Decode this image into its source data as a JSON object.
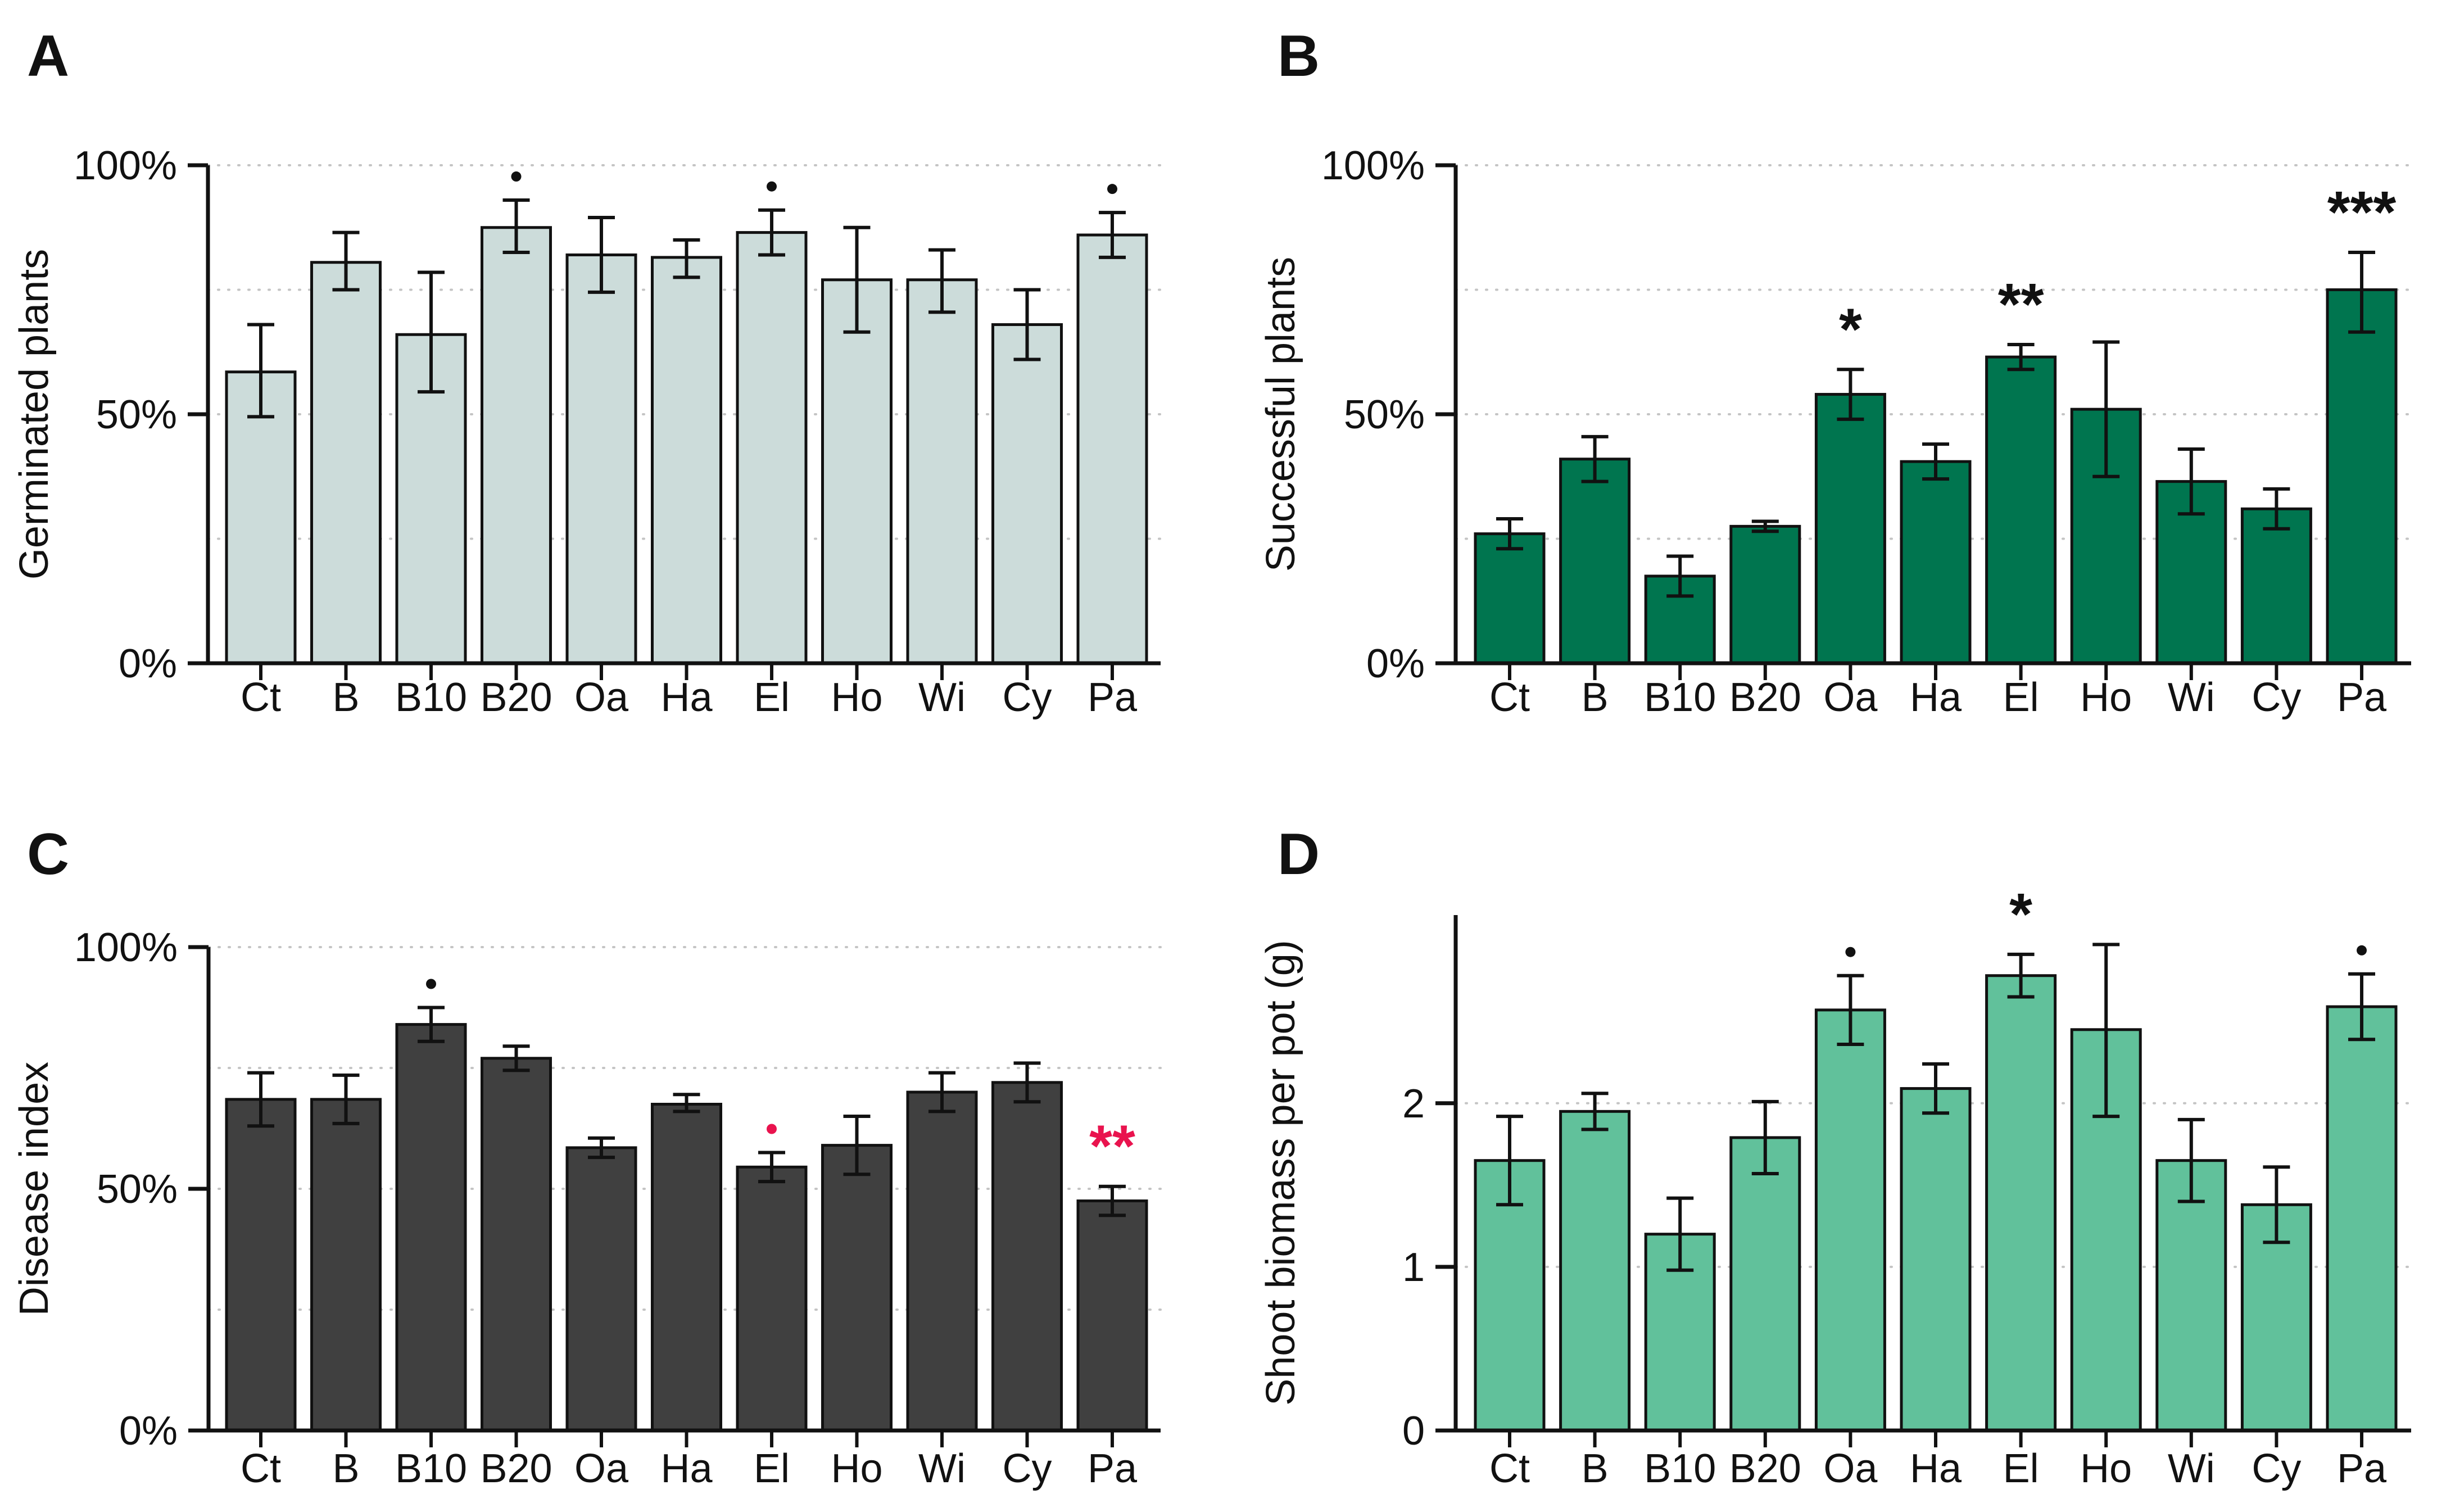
{
  "figure": {
    "background": "#ffffff",
    "axis_color": "#111111",
    "grid_color": "#c4c4c4",
    "significance_red": "#e9134e",
    "significance_black": "#111111"
  },
  "chart_data": [
    {
      "type": "bar",
      "panel_letter": "A",
      "ylabel": "Germinated plants",
      "categories": [
        "Ct",
        "B",
        "B10",
        "B20",
        "Oa",
        "Ha",
        "El",
        "Ho",
        "Wi",
        "Cy",
        "Pa"
      ],
      "values": [
        58.5,
        80.5,
        66,
        87.5,
        82,
        81.5,
        86.5,
        77,
        77,
        68,
        86
      ],
      "err_lo": [
        49.5,
        75,
        54.5,
        82.5,
        74.5,
        77.5,
        82,
        66.5,
        70.5,
        61,
        81.5
      ],
      "err_hi": [
        68,
        86.5,
        78.5,
        93,
        89.5,
        85,
        91,
        87.5,
        83,
        75,
        90.5
      ],
      "ylim": [
        0,
        100
      ],
      "yticks": [
        {
          "v": 0,
          "label": "0%"
        },
        {
          "v": 50,
          "label": "50%"
        },
        {
          "v": 100,
          "label": "100%"
        }
      ],
      "gridlines": [
        25,
        50,
        75,
        100
      ],
      "grid_style": "dotted",
      "bar_fill": "#ccdcda",
      "bar_stroke": "#111111",
      "markers": [
        {
          "category": "B20",
          "symbol": "dot",
          "color": "#111111"
        },
        {
          "category": "El",
          "symbol": "dot",
          "color": "#111111"
        },
        {
          "category": "Pa",
          "symbol": "dot",
          "color": "#111111"
        }
      ]
    },
    {
      "type": "bar",
      "panel_letter": "B",
      "ylabel": "Successful plants",
      "categories": [
        "Ct",
        "B",
        "B10",
        "B20",
        "Oa",
        "Ha",
        "El",
        "Ho",
        "Wi",
        "Cy",
        "Pa"
      ],
      "values": [
        26,
        41,
        17.5,
        27.5,
        54,
        40.5,
        61.5,
        51,
        36.5,
        31,
        75
      ],
      "err_lo": [
        23,
        36.5,
        13.5,
        26.5,
        49,
        37,
        59,
        37.5,
        30,
        27,
        66.5
      ],
      "err_hi": [
        29,
        45.5,
        21.5,
        28.5,
        59,
        44,
        64,
        64.5,
        43,
        35,
        82.5
      ],
      "ylim": [
        0,
        100
      ],
      "yticks": [
        {
          "v": 0,
          "label": "0%"
        },
        {
          "v": 50,
          "label": "50%"
        },
        {
          "v": 100,
          "label": "100%"
        }
      ],
      "gridlines": [
        25,
        50,
        75,
        100
      ],
      "grid_style": "dotted",
      "bar_fill": "#00754f",
      "bar_stroke": "#111111",
      "markers": [
        {
          "category": "Oa",
          "symbol": "*",
          "color": "#111111"
        },
        {
          "category": "El",
          "symbol": "**",
          "color": "#111111"
        },
        {
          "category": "Pa",
          "symbol": "***",
          "color": "#111111"
        }
      ]
    },
    {
      "type": "bar",
      "panel_letter": "C",
      "ylabel": "Disease index",
      "categories": [
        "Ct",
        "B",
        "B10",
        "B20",
        "Oa",
        "Ha",
        "El",
        "Ho",
        "Wi",
        "Cy",
        "Pa"
      ],
      "values": [
        68.5,
        68.5,
        84,
        77,
        58.5,
        67.5,
        54.5,
        59,
        70,
        72,
        47.5
      ],
      "err_lo": [
        63,
        63.5,
        80.5,
        74.5,
        56.5,
        66,
        51.5,
        53,
        66,
        68,
        44.5
      ],
      "err_hi": [
        74,
        73.5,
        87.5,
        79.5,
        60.5,
        69.5,
        57.5,
        65,
        74,
        76,
        50.5
      ],
      "ylim": [
        0,
        100
      ],
      "yticks": [
        {
          "v": 0,
          "label": "0%"
        },
        {
          "v": 50,
          "label": "50%"
        },
        {
          "v": 100,
          "label": "100%"
        }
      ],
      "gridlines": [
        25,
        50,
        75,
        100
      ],
      "grid_style": "dotted",
      "bar_fill": "#404040",
      "bar_stroke": "#111111",
      "markers": [
        {
          "category": "B10",
          "symbol": "dot",
          "color": "#111111"
        },
        {
          "category": "El",
          "symbol": "dot",
          "color": "#e9134e"
        },
        {
          "category": "Pa",
          "symbol": "**",
          "color": "#e9134e"
        }
      ]
    },
    {
      "type": "bar",
      "panel_letter": "D",
      "ylabel": "Shoot biomass per pot (g)",
      "categories": [
        "Ct",
        "B",
        "B10",
        "B20",
        "Oa",
        "Ha",
        "El",
        "Ho",
        "Wi",
        "Cy",
        "Pa"
      ],
      "values": [
        1.65,
        1.95,
        1.2,
        1.79,
        2.57,
        2.09,
        2.78,
        2.45,
        1.65,
        1.38,
        2.59
      ],
      "err_lo": [
        1.38,
        1.84,
        0.98,
        1.57,
        2.36,
        1.94,
        2.65,
        1.92,
        1.4,
        1.15,
        2.39
      ],
      "err_hi": [
        1.92,
        2.06,
        1.42,
        2.01,
        2.78,
        2.24,
        2.91,
        2.97,
        1.9,
        1.61,
        2.79
      ],
      "ylim": [
        0,
        3.15
      ],
      "yticks": [
        {
          "v": 0,
          "label": "0"
        },
        {
          "v": 1,
          "label": "1"
        },
        {
          "v": 2,
          "label": "2"
        }
      ],
      "gridlines": [
        1,
        2
      ],
      "grid_style": "dotted",
      "bar_fill": "#61c19b",
      "bar_stroke": "#111111",
      "markers": [
        {
          "category": "Oa",
          "symbol": "dot",
          "color": "#111111"
        },
        {
          "category": "El",
          "symbol": "*",
          "color": "#111111"
        },
        {
          "category": "Pa",
          "symbol": "dot",
          "color": "#111111"
        }
      ]
    }
  ]
}
